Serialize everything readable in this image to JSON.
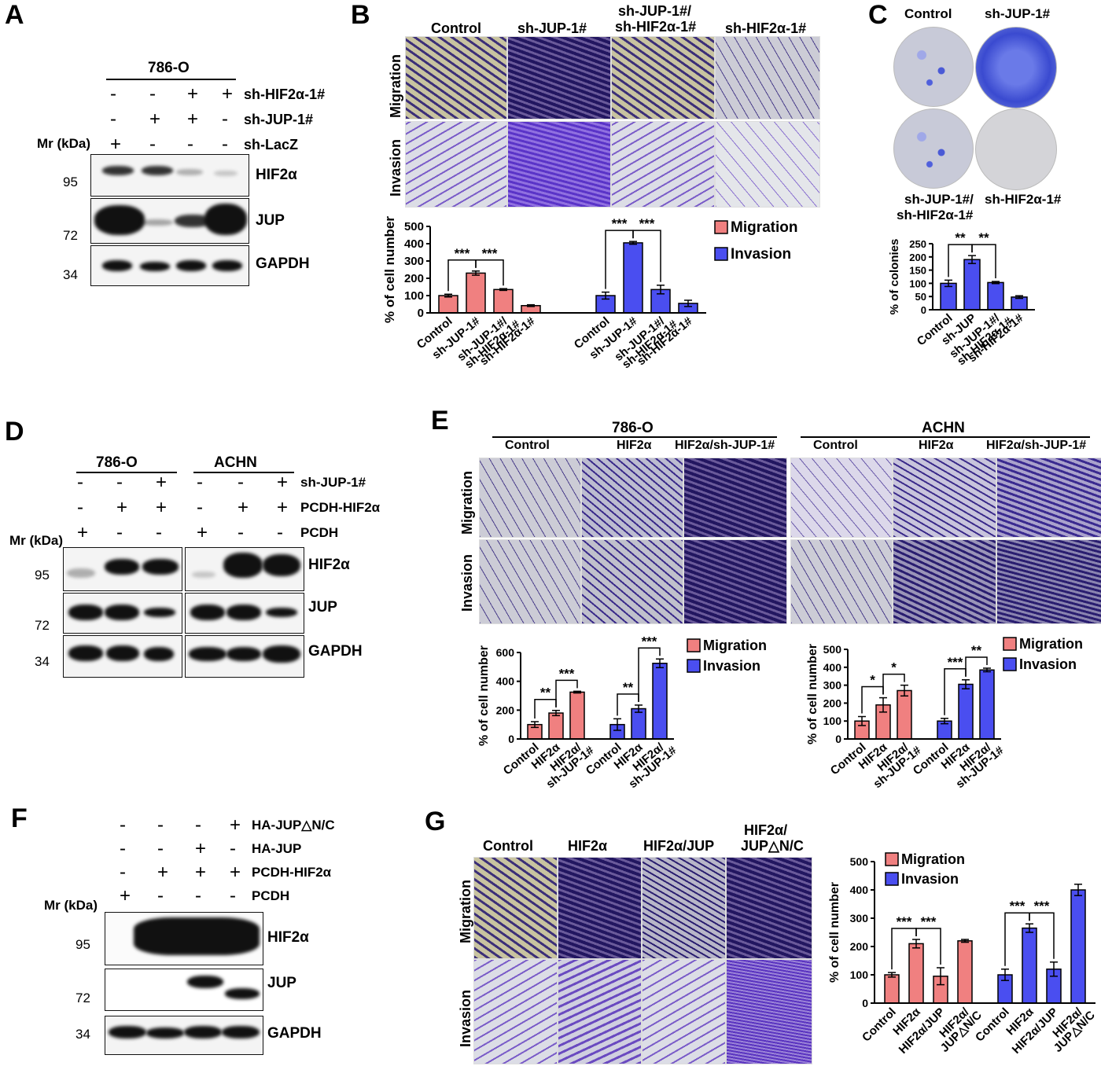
{
  "panels": {
    "A": {
      "letter": "A",
      "cell_line": "786-O",
      "rows": [
        {
          "label": "sh-HIF2α-1#",
          "signs": [
            "-",
            "-",
            "+",
            "+"
          ]
        },
        {
          "label": "sh-JUP-1#",
          "signs": [
            "-",
            "+",
            "+",
            "-"
          ]
        },
        {
          "label": "sh-LacZ",
          "signs": [
            "+",
            "-",
            "-",
            "-"
          ]
        }
      ],
      "mr_label": "Mr (kDa)",
      "markers": [
        "95",
        "72",
        "34"
      ],
      "proteins": [
        "HIF2α",
        "JUP",
        "GAPDH"
      ]
    },
    "B": {
      "letter": "B",
      "columns": [
        "Control",
        "sh-JUP-1#",
        "sh-JUP-1#/\nsh-HIF2α-1#",
        "sh-HIF2α-1#"
      ],
      "col_line1": [
        "Control",
        "sh-JUP-1#",
        "sh-JUP-1#/",
        "sh-HIF2α-1#"
      ],
      "col_line2": [
        "",
        "",
        "sh-HIF2α-1#",
        ""
      ],
      "row_labels": [
        "Migration",
        "Invasion"
      ]
    },
    "C": {
      "letter": "C",
      "top_labels": [
        "Control",
        "sh-JUP-1#"
      ],
      "bottom_labels": [
        "sh-JUP-1#/",
        "sh-HIF2α-1#",
        "sh-HIF2α-1#"
      ]
    },
    "D": {
      "letter": "D",
      "cell_lines": [
        "786-O",
        "ACHN"
      ],
      "rows": [
        {
          "label": "sh-JUP-1#",
          "signs": [
            "-",
            "-",
            "+",
            "-",
            "-",
            "+"
          ]
        },
        {
          "label": "PCDH-HIF2α",
          "signs": [
            "-",
            "+",
            "+",
            "-",
            "+",
            "+"
          ]
        },
        {
          "label": "PCDH",
          "signs": [
            "+",
            "-",
            "-",
            "+",
            "-",
            "-"
          ]
        }
      ],
      "mr_label": "Mr (kDa)",
      "markers": [
        "95",
        "72",
        "34"
      ],
      "proteins": [
        "HIF2α",
        "JUP",
        "GAPDH"
      ]
    },
    "E": {
      "letter": "E",
      "cell_lines": [
        "786-O",
        "ACHN"
      ],
      "columns": [
        "Control",
        "HIF2α",
        "HIF2α/sh-JUP-1#"
      ],
      "row_labels": [
        "Migration",
        "Invasion"
      ]
    },
    "F": {
      "letter": "F",
      "rows": [
        {
          "label": "HA-JUP△N/C",
          "signs": [
            "-",
            "-",
            "-",
            "+"
          ]
        },
        {
          "label": "HA-JUP",
          "signs": [
            "-",
            "-",
            "+",
            "-"
          ]
        },
        {
          "label": "PCDH-HIF2α",
          "signs": [
            "-",
            "+",
            "+",
            "+"
          ]
        },
        {
          "label": "PCDH",
          "signs": [
            "+",
            "-",
            "-",
            "-"
          ]
        }
      ],
      "mr_label": "Mr (kDa)",
      "markers": [
        "95",
        "72",
        "34"
      ],
      "proteins": [
        "HIF2α",
        "JUP",
        "GAPDH"
      ]
    },
    "G": {
      "letter": "G",
      "col_line1": [
        "Control",
        "HIF2α",
        "HIF2α/JUP",
        "HIF2α/"
      ],
      "col_line2": [
        "",
        "",
        "",
        "JUP△N/C"
      ],
      "row_labels": [
        "Migration",
        "Invasion"
      ]
    }
  },
  "chart_data": [
    {
      "id": "B-chart",
      "type": "bar",
      "ylabel": "% of cell number",
      "ylim": [
        0,
        500
      ],
      "yticks": [
        0,
        100,
        200,
        300,
        400,
        500
      ],
      "categories": [
        "Control",
        "sh-JUP-1#",
        "sh-JUP-1#/\nsh-HIF2α-1#",
        "sh-HIF2α-1#"
      ],
      "series": [
        {
          "name": "Migration",
          "color": "#f08080",
          "values": [
            100,
            230,
            135,
            42
          ],
          "errors": [
            8,
            12,
            5,
            5
          ]
        },
        {
          "name": "Invasion",
          "color": "#4a4ef0",
          "values": [
            100,
            405,
            135,
            55
          ],
          "errors": [
            20,
            8,
            25,
            18
          ]
        }
      ],
      "significance": [
        "***",
        "***",
        "***",
        "***"
      ]
    },
    {
      "id": "C-chart",
      "type": "bar",
      "ylabel": "% of colonies",
      "ylim": [
        0,
        250
      ],
      "yticks": [
        0,
        50,
        100,
        150,
        200,
        250
      ],
      "categories": [
        "Control",
        "sh-JUP",
        "sh-JUP-1#/\nsh-HIF2α-1#",
        "sh-HIF2α-1#"
      ],
      "series": [
        {
          "name": "",
          "color": "#4a4ef0",
          "values": [
            100,
            190,
            103,
            48
          ],
          "errors": [
            12,
            15,
            4,
            5
          ]
        }
      ],
      "significance": [
        "**",
        "**"
      ]
    },
    {
      "id": "E-786O-chart",
      "type": "bar",
      "ylabel": "% of cell number",
      "ylim": [
        0,
        600
      ],
      "yticks": [
        0,
        200,
        400,
        600
      ],
      "categories": [
        "Control",
        "HIF2α",
        "HIF2α/\nsh-JUP-1#"
      ],
      "series": [
        {
          "name": "Migration",
          "color": "#f08080",
          "values": [
            100,
            180,
            325
          ],
          "errors": [
            20,
            18,
            6
          ]
        },
        {
          "name": "Invasion",
          "color": "#4a4ef0",
          "values": [
            100,
            210,
            525
          ],
          "errors": [
            40,
            25,
            30
          ]
        }
      ],
      "significance": [
        "**",
        "***",
        "**",
        "***"
      ]
    },
    {
      "id": "E-ACHN-chart",
      "type": "bar",
      "ylabel": "% of cell number",
      "ylim": [
        0,
        500
      ],
      "yticks": [
        0,
        100,
        200,
        300,
        400,
        500
      ],
      "categories": [
        "Control",
        "HIF2α",
        "HIF2α/\nsh-JUP-1#"
      ],
      "series": [
        {
          "name": "Migration",
          "color": "#f08080",
          "values": [
            100,
            190,
            270
          ],
          "errors": [
            25,
            40,
            30
          ]
        },
        {
          "name": "Invasion",
          "color": "#4a4ef0",
          "values": [
            100,
            305,
            385
          ],
          "errors": [
            15,
            25,
            10
          ]
        }
      ],
      "significance": [
        "*",
        "*",
        "***",
        "**"
      ]
    },
    {
      "id": "G-chart",
      "type": "bar",
      "ylabel": "% of cell number",
      "ylim": [
        0,
        500
      ],
      "yticks": [
        0,
        100,
        200,
        300,
        400,
        500
      ],
      "categories": [
        "Control",
        "HIF2α",
        "HIF2α/JUP",
        "HIF2α/\nJUP△N/C"
      ],
      "series": [
        {
          "name": "Migration",
          "color": "#f08080",
          "values": [
            100,
            210,
            95,
            220
          ],
          "errors": [
            8,
            15,
            30,
            5
          ]
        },
        {
          "name": "Invasion",
          "color": "#4a4ef0",
          "values": [
            100,
            265,
            120,
            400
          ],
          "errors": [
            20,
            15,
            25,
            20
          ]
        }
      ],
      "significance": [
        "***",
        "***",
        "***",
        "***"
      ]
    }
  ]
}
